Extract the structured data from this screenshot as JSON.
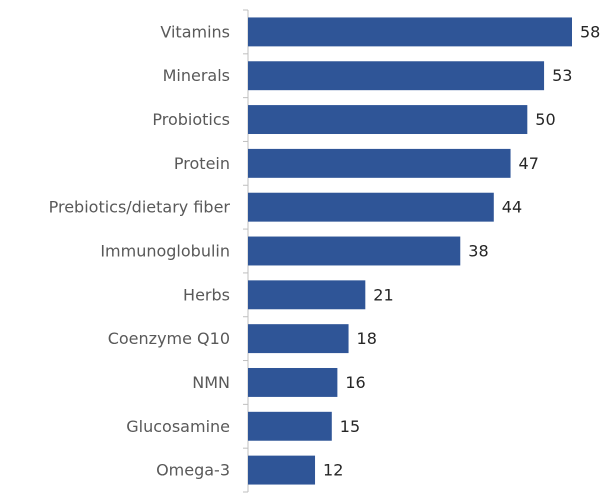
{
  "chart_data": {
    "type": "bar",
    "orientation": "horizontal",
    "categories": [
      "Vitamins",
      "Minerals",
      "Probiotics",
      "Protein",
      "Prebiotics/dietary fiber",
      "Immunoglobulin",
      "Herbs",
      "Coenzyme Q10",
      "NMN",
      "Glucosamine",
      "Omega-3"
    ],
    "values": [
      58,
      53,
      50,
      47,
      44,
      38,
      21,
      18,
      16,
      15,
      12
    ],
    "color": "#2f5597"
  }
}
